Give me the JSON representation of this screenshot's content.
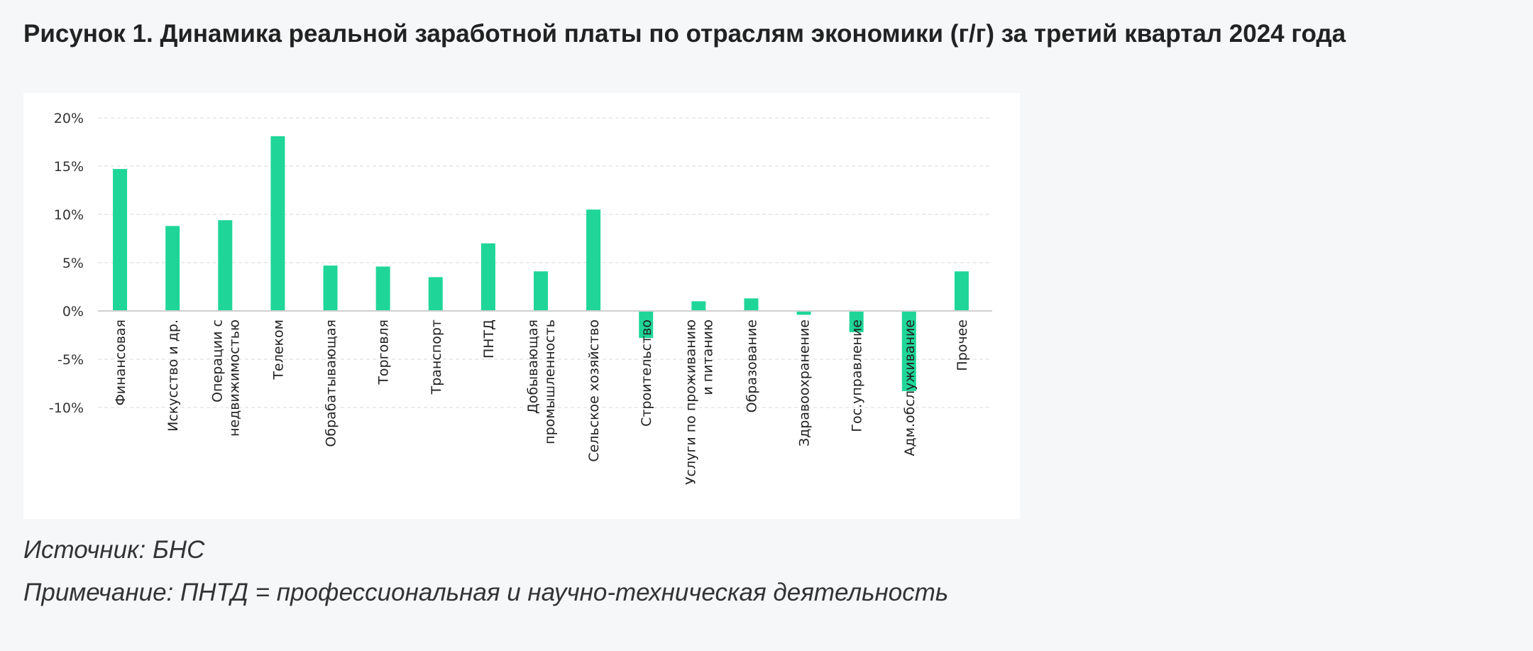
{
  "figure": {
    "title": "Рисунок 1. Динамика реальной заработной платы по отраслям экономики (г/г) за третий квартал 2024 года",
    "source": "Источник: БНС",
    "note": "Примечание: ПНТД = профессиональная и научно-техническая деятельность"
  },
  "chart_data": {
    "type": "bar",
    "title": "",
    "xlabel": "",
    "ylabel": "",
    "ylim": [
      -10,
      20
    ],
    "yticks": [
      "20%",
      "15%",
      "10%",
      "5%",
      "0%",
      "-5%",
      "-10%"
    ],
    "grid": true,
    "legend": "none",
    "bar_color": "#1fd698",
    "categories": [
      [
        "Финансовая"
      ],
      [
        "Искусство и др."
      ],
      [
        "Операции с",
        "недвижимостью"
      ],
      [
        "Телеком"
      ],
      [
        "Обрабатывающая"
      ],
      [
        "Торговля"
      ],
      [
        "Транспорт"
      ],
      [
        "ПНТД"
      ],
      [
        "Добывающая",
        "промышленность"
      ],
      [
        "Сельское хозяйство"
      ],
      [
        "Строительство"
      ],
      [
        "Услуги по проживанию",
        "и питанию"
      ],
      [
        "Образование"
      ],
      [
        "Здравоохранение"
      ],
      [
        "Гос.управление"
      ],
      [
        "Адм.обслуживание"
      ],
      [
        "Прочее"
      ]
    ],
    "values": [
      14.7,
      8.8,
      9.4,
      18.1,
      4.7,
      4.6,
      3.5,
      7.0,
      4.1,
      10.5,
      -2.8,
      1.0,
      1.3,
      -0.4,
      -2.2,
      -8.3,
      4.1
    ]
  }
}
